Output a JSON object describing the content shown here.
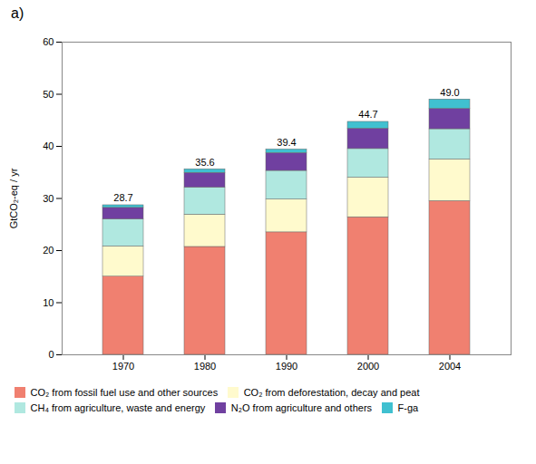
{
  "chart_data": {
    "type": "bar",
    "stacked": true,
    "title": "a)",
    "categories": [
      "1970",
      "1980",
      "1990",
      "2000",
      "2004"
    ],
    "ylabel": "GtCO₂-eq / yr",
    "ylim": [
      0,
      60
    ],
    "yticks": [
      0,
      10,
      20,
      30,
      40,
      50,
      60
    ],
    "legend": "bottom",
    "series": [
      {
        "name": "CO₂ from fossil fuel use and other sources",
        "color": "#F08070",
        "values": [
          15.0,
          20.7,
          23.5,
          26.4,
          29.5
        ]
      },
      {
        "name": "CO₂ from deforestation, decay and peat",
        "color": "#FFFACD",
        "values": [
          5.8,
          6.2,
          6.3,
          7.6,
          8.0
        ]
      },
      {
        "name": "CH₄ from agriculture, waste and energy",
        "color": "#B0E8E0",
        "values": [
          5.2,
          5.2,
          5.5,
          5.5,
          5.8
        ]
      },
      {
        "name": "N₂O from agriculture and others",
        "color": "#7040A0",
        "values": [
          2.2,
          2.8,
          3.4,
          3.9,
          3.9
        ]
      },
      {
        "name": "F-ga",
        "color": "#40C0D0",
        "values": [
          0.5,
          0.7,
          0.7,
          1.3,
          1.8
        ]
      }
    ],
    "totals": [
      28.7,
      35.6,
      39.4,
      44.7,
      49.0
    ],
    "total_labels": [
      "28.7",
      "35.6",
      "39.4",
      "44.7",
      "49.0"
    ]
  }
}
